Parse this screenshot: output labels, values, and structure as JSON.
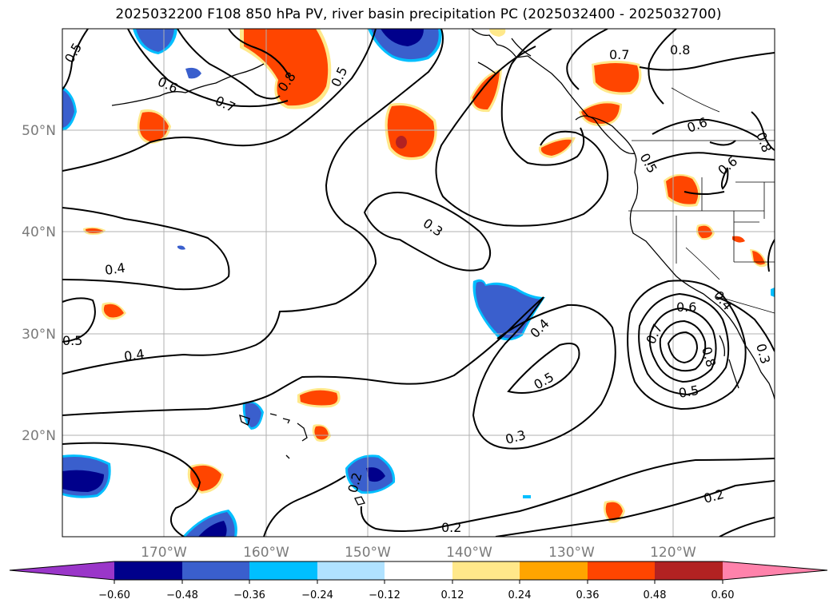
{
  "title": "2025032200 F108 850 hPa PV, river basin precipitation PC (2025032400 - 2025032700)",
  "map": {
    "lat_labels": [
      "50°N",
      "40°N",
      "30°N",
      "20°N"
    ],
    "lon_labels": [
      "170°W",
      "160°W",
      "150°W",
      "140°W",
      "130°W",
      "120°W"
    ],
    "contour_labels": [
      "0.5",
      "0.6",
      "0.7",
      "0.8",
      "0.5",
      "0.7",
      "0.8",
      "0.6",
      "0.8",
      "0.6",
      "0.5",
      "0.3",
      "0.4",
      "0.4",
      "0.5",
      "0.4",
      "0.5",
      "0.6",
      "0.7",
      "0.8",
      "0.5",
      "0.3",
      "0.2",
      "0.2",
      "0.2",
      "0.3",
      "0.4"
    ]
  },
  "colorbar": {
    "ticks": [
      "−0.60",
      "−0.48",
      "−0.36",
      "−0.24",
      "−0.12",
      "0.12",
      "0.24",
      "0.36",
      "0.48",
      "0.60"
    ],
    "colors": [
      "#9a36c9",
      "#00008b",
      "#3a5fcd",
      "#00bfff",
      "#b0e2ff",
      "#ffffff",
      "#ffe88a",
      "#ffa500",
      "#ff4500",
      "#b22222",
      "#ff82ab",
      "#ff82ab"
    ]
  },
  "colors": {
    "pos_low": "#ffe88a",
    "pos_mid": "#ffa500",
    "pos_high": "#ff4500",
    "pos_max": "#b22222",
    "neg_low": "#b0e2ff",
    "neg_mid": "#00bfff",
    "neg_high": "#3a5fcd",
    "neg_max": "#00008b"
  }
}
